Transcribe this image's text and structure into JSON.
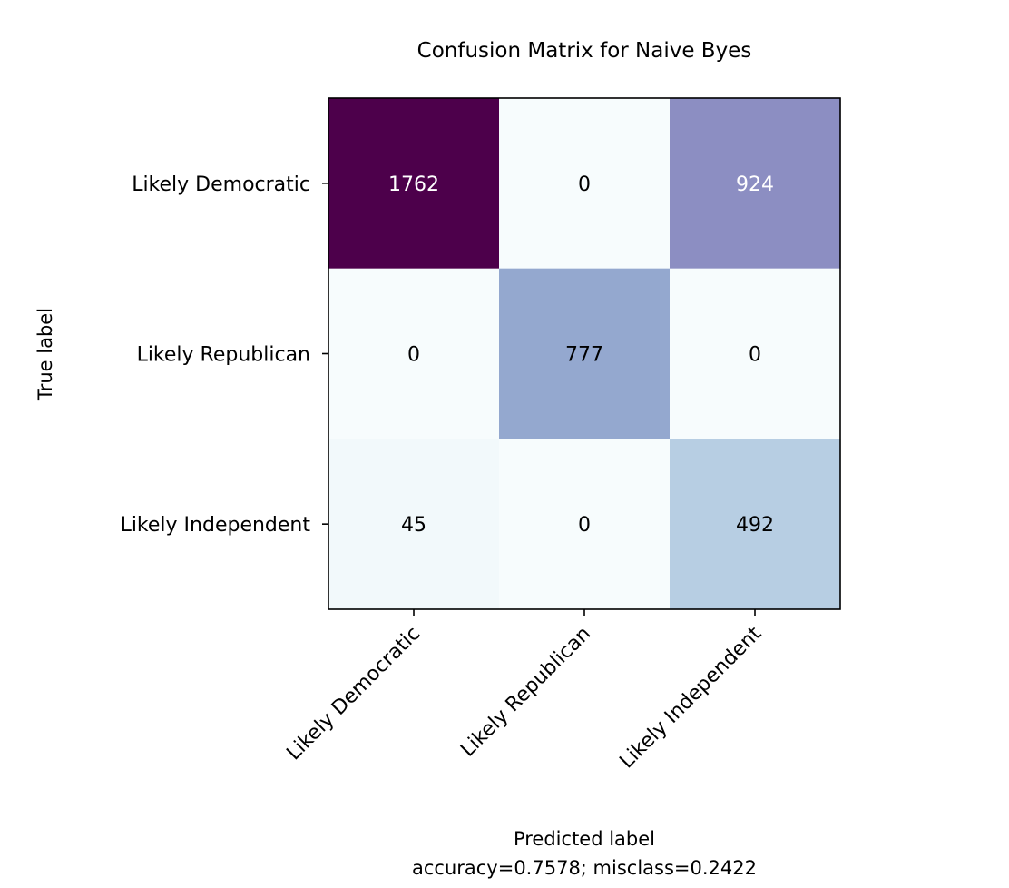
{
  "chart_data": {
    "type": "heatmap",
    "title": "Confusion Matrix for Naive Byes",
    "xlabel": "Predicted label",
    "ylabel": "True label",
    "caption": "accuracy=0.7578; misclass=0.2422",
    "rows": [
      "Likely Democratic",
      "Likely Republican",
      "Likely Independent"
    ],
    "columns": [
      "Likely Democratic",
      "Likely Republican",
      "Likely Independent"
    ],
    "values": [
      [
        1762,
        0,
        924
      ],
      [
        0,
        777,
        0
      ],
      [
        45,
        0,
        492
      ]
    ],
    "colormap": "BuPu",
    "color_range": [
      0,
      1762
    ],
    "grid": false
  }
}
